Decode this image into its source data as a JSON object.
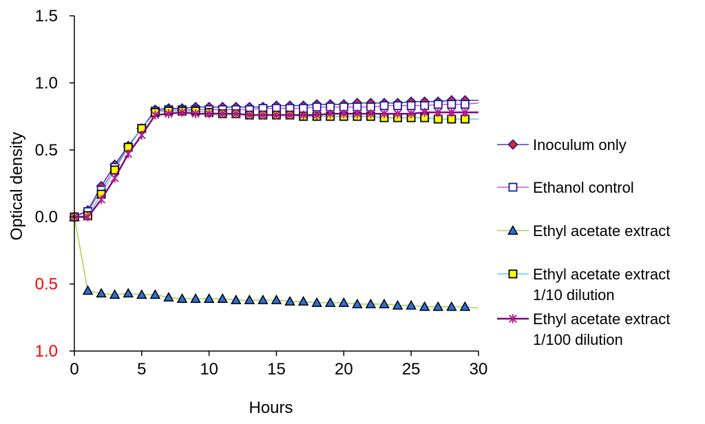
{
  "chart_data": {
    "type": "line",
    "title": "",
    "xlabel": "Hours",
    "ylabel": "Optical density",
    "xlim": [
      0,
      30
    ],
    "ylim": [
      -1.0,
      1.5
    ],
    "xticks": [
      "0",
      "5",
      "10",
      "15",
      "20",
      "25",
      "30"
    ],
    "xtick_values": [
      0,
      5,
      10,
      15,
      20,
      25,
      30
    ],
    "yticks": [
      {
        "value": 1.5,
        "label": "1.5",
        "color": "#000000"
      },
      {
        "value": 1.0,
        "label": "1.0",
        "color": "#000000"
      },
      {
        "value": 0.5,
        "label": "0.5",
        "color": "#000000"
      },
      {
        "value": 0.0,
        "label": "0.0",
        "color": "#000000"
      },
      {
        "value": -0.5,
        "label": "0.5",
        "color": "#ff0000"
      },
      {
        "value": -1.0,
        "label": "1.0",
        "color": "#ff0000"
      }
    ],
    "legend_position": "right",
    "series": [
      {
        "name": "Inoculum only",
        "legend_lines": [
          "Inoculum only"
        ],
        "line_color": "#1f1f8f",
        "marker": "diamond",
        "marker_fill": "#d62728",
        "marker_stroke": "#1a1aa0",
        "x": [
          0,
          1,
          2,
          3,
          4,
          5,
          6,
          7,
          8,
          9,
          10,
          11,
          12,
          13,
          14,
          15,
          16,
          17,
          18,
          19,
          20,
          21,
          22,
          23,
          24,
          25,
          26,
          27,
          28,
          29
        ],
        "y": [
          0.0,
          0.05,
          0.23,
          0.39,
          0.53,
          0.66,
          0.8,
          0.81,
          0.81,
          0.82,
          0.82,
          0.82,
          0.82,
          0.82,
          0.82,
          0.83,
          0.83,
          0.83,
          0.84,
          0.84,
          0.84,
          0.85,
          0.85,
          0.85,
          0.85,
          0.86,
          0.86,
          0.86,
          0.87,
          0.87
        ],
        "trend_end": 0.87
      },
      {
        "name": "Ethanol control",
        "legend_lines": [
          "Ethanol control"
        ],
        "line_color": "#cc33cc",
        "marker": "square",
        "marker_fill": "#ffffff",
        "marker_stroke": "#1a1aa0",
        "x": [
          0,
          1,
          2,
          3,
          4,
          5,
          6,
          7,
          8,
          9,
          10,
          11,
          12,
          13,
          14,
          15,
          16,
          17,
          18,
          19,
          20,
          21,
          22,
          23,
          24,
          25,
          26,
          27,
          28,
          29
        ],
        "y": [
          0.0,
          0.04,
          0.2,
          0.37,
          0.52,
          0.66,
          0.79,
          0.8,
          0.8,
          0.8,
          0.8,
          0.8,
          0.8,
          0.8,
          0.81,
          0.81,
          0.81,
          0.81,
          0.82,
          0.82,
          0.82,
          0.82,
          0.82,
          0.83,
          0.83,
          0.83,
          0.83,
          0.84,
          0.84,
          0.84
        ],
        "trend_end": 0.85
      },
      {
        "name": "Ethyl acetate extract",
        "legend_lines": [
          "Ethyl acetate extract"
        ],
        "line_color": "#99cc33",
        "marker": "triangle",
        "marker_fill": "#2e6fd6",
        "marker_stroke": "#000000",
        "x": [
          0,
          1,
          2,
          3,
          4,
          5,
          6,
          7,
          8,
          9,
          10,
          11,
          12,
          13,
          14,
          15,
          16,
          17,
          18,
          19,
          20,
          21,
          22,
          23,
          24,
          25,
          26,
          27,
          28,
          29
        ],
        "y": [
          0.0,
          -0.55,
          -0.57,
          -0.58,
          -0.57,
          -0.58,
          -0.58,
          -0.6,
          -0.61,
          -0.61,
          -0.61,
          -0.61,
          -0.62,
          -0.62,
          -0.62,
          -0.62,
          -0.63,
          -0.63,
          -0.64,
          -0.64,
          -0.64,
          -0.65,
          -0.65,
          -0.65,
          -0.66,
          -0.66,
          -0.67,
          -0.67,
          -0.67,
          -0.67
        ],
        "trend_end": -0.68
      },
      {
        "name": "Ethyl acetate extract 1/10 dilution",
        "legend_lines": [
          "Ethyl acetate extract",
          "1/10 dilution"
        ],
        "line_color": "#33cccc",
        "marker": "square",
        "marker_fill": "#ffff00",
        "marker_stroke": "#000000",
        "x": [
          0,
          1,
          2,
          3,
          4,
          5,
          6,
          7,
          8,
          9,
          10,
          11,
          12,
          13,
          14,
          15,
          16,
          17,
          18,
          19,
          20,
          21,
          22,
          23,
          24,
          25,
          26,
          27,
          28,
          29
        ],
        "y": [
          0.0,
          0.01,
          0.17,
          0.35,
          0.52,
          0.66,
          0.78,
          0.79,
          0.79,
          0.79,
          0.78,
          0.77,
          0.77,
          0.76,
          0.76,
          0.76,
          0.76,
          0.75,
          0.75,
          0.75,
          0.75,
          0.75,
          0.75,
          0.74,
          0.74,
          0.74,
          0.74,
          0.73,
          0.73,
          0.73
        ],
        "trend_end": 0.73
      },
      {
        "name": "Ethyl acetate extract 1/100 dilution",
        "legend_lines": [
          "Ethyl acetate extract",
          "1/100 dilution"
        ],
        "line_color": "#800080",
        "marker": "star",
        "marker_fill": "#800080",
        "marker_stroke": "#b0208f",
        "x": [
          0,
          1,
          2,
          3,
          4,
          5,
          6,
          7,
          8,
          9,
          10,
          11,
          12,
          13,
          14,
          15,
          16,
          17,
          18,
          19,
          20,
          21,
          22,
          23,
          24,
          25,
          26,
          27,
          28,
          29
        ],
        "y": [
          0.0,
          0.0,
          0.13,
          0.29,
          0.47,
          0.61,
          0.76,
          0.77,
          0.78,
          0.77,
          0.77,
          0.77,
          0.77,
          0.76,
          0.76,
          0.76,
          0.76,
          0.76,
          0.76,
          0.77,
          0.77,
          0.77,
          0.77,
          0.77,
          0.77,
          0.77,
          0.78,
          0.78,
          0.78,
          0.78
        ],
        "trend_end": 0.78
      }
    ]
  }
}
